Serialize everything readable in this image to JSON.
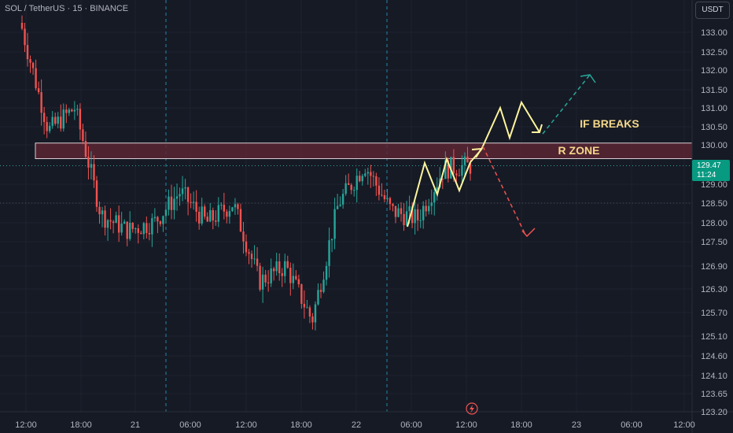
{
  "header": {
    "symbol_line": "SOL / TetherUS · 15 · BINANCE",
    "quote_currency": "USDT"
  },
  "price_tag": {
    "price": "129.47",
    "countdown": "11:24"
  },
  "colors": {
    "background": "#161a25",
    "up_candle": "#26a69a",
    "down_candle": "#ef5350",
    "zone_fill": "#5b2634",
    "annotation_yellow": "#fff59d",
    "label_yellow": "#f5d88a",
    "up_arrow": "#26a69a",
    "down_arrow": "#ef5350",
    "session_line": "#1e88a8"
  },
  "chart_data": {
    "type": "candlestick",
    "symbol": "SOL / TetherUS",
    "interval": "15",
    "exchange": "BINANCE",
    "y_axis": {
      "labels": [
        "133.00",
        "132.50",
        "132.00",
        "131.50",
        "131.00",
        "130.50",
        "130.00",
        "129.00",
        "128.50",
        "128.00",
        "127.50",
        "126.90",
        "126.30",
        "125.70",
        "125.10",
        "124.60",
        "124.10",
        "123.65",
        "123.20"
      ],
      "values": [
        133.0,
        132.5,
        132.0,
        131.5,
        131.0,
        130.5,
        130.0,
        129.0,
        128.5,
        128.0,
        127.5,
        126.9,
        126.3,
        125.7,
        125.1,
        124.6,
        124.1,
        123.65,
        123.2
      ],
      "scale": "log",
      "range": [
        123.2,
        133.4
      ]
    },
    "x_axis": {
      "labels": [
        "12:00",
        "18:00",
        "21",
        "06:00",
        "12:00",
        "18:00",
        "22",
        "06:00",
        "12:00",
        "18:00",
        "23",
        "06:00",
        "12:00"
      ]
    },
    "current_price": 129.47,
    "session_breaks": [
      "21",
      "22"
    ],
    "candles_summary": [
      {
        "time": "12:00",
        "close": 133.1
      },
      {
        "time": "15:00",
        "close": 130.4
      },
      {
        "time": "18:00",
        "close": 131.0
      },
      {
        "time": "19:30",
        "close": 128.2
      },
      {
        "time": "21 00:00",
        "close": 127.8
      },
      {
        "time": "21 03:00",
        "close": 128.0
      },
      {
        "time": "21 06:00",
        "close": 128.8
      },
      {
        "time": "21 09:00",
        "close": 128.0
      },
      {
        "time": "21 12:00",
        "close": 128.5
      },
      {
        "time": "21 15:00",
        "close": 126.5
      },
      {
        "time": "21 18:00",
        "close": 126.9
      },
      {
        "time": "21 20:00",
        "close": 125.5
      },
      {
        "time": "21 22:00",
        "close": 128.5
      },
      {
        "time": "22 00:00",
        "close": 129.5
      },
      {
        "time": "22 03:00",
        "close": 128.3
      },
      {
        "time": "22 06:00",
        "close": 128.1
      },
      {
        "time": "22 09:00",
        "close": 129.4
      },
      {
        "time": "22 12:00",
        "close": 129.47
      }
    ],
    "resistance_zone": {
      "label": "R ZONE",
      "low": 129.65,
      "high": 130.05
    },
    "annotations": [
      "IF BREAKS",
      "R ZONE"
    ]
  }
}
